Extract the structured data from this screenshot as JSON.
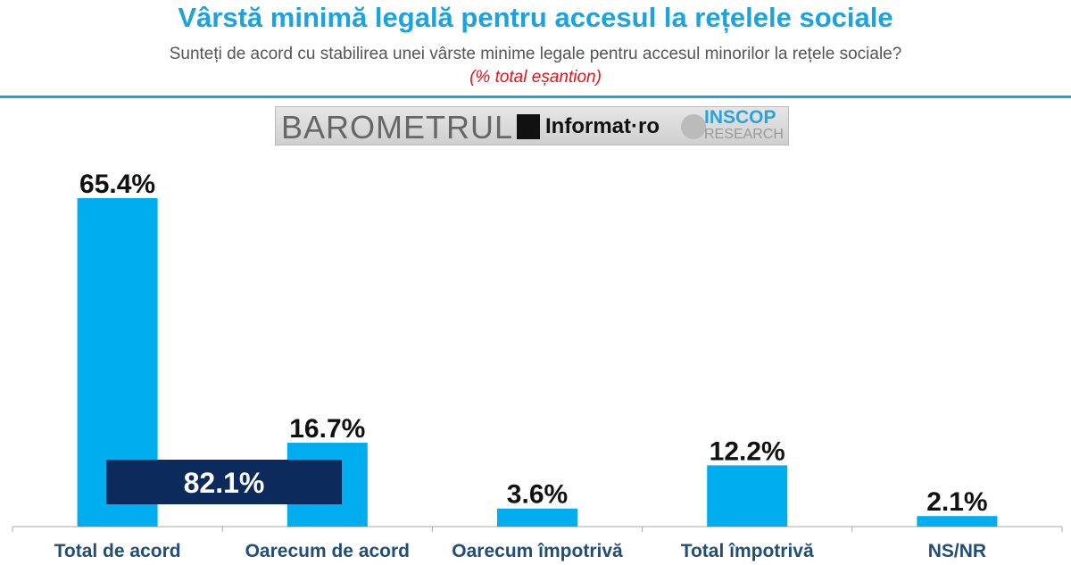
{
  "title": "Vârstă minimă legală pentru accesul la rețelele sociale",
  "subtitle": "Sunteți de acord cu stabilirea unei vârste minime legale pentru accesul minorilor la rețele sociale?",
  "note": "(% total eșantion)",
  "logo": {
    "barometrul": "BAROMETRUL",
    "informat": "Informat·ro",
    "inscop": "INSCOP",
    "research": "RESEARCH"
  },
  "colors": {
    "bar": "#00adef",
    "overlay": "#0d2a5c",
    "title": "#1ca3dd",
    "axis_label": "#1f4e79"
  },
  "chart_data": {
    "type": "bar",
    "categories": [
      "Total de acord",
      "Oarecum de acord",
      "Oarecum împotrivă",
      "Total împotrivă",
      "NS/NR"
    ],
    "values": [
      65.4,
      16.7,
      3.6,
      12.2,
      2.1
    ],
    "labels": [
      "65.4%",
      "16.7%",
      "3.6%",
      "12.2%",
      "2.1%"
    ],
    "ylim": [
      0,
      70
    ],
    "grid": false,
    "annotations": [
      {
        "text": "82.1%",
        "note": "Total de acord + Oarecum de acord"
      }
    ]
  }
}
